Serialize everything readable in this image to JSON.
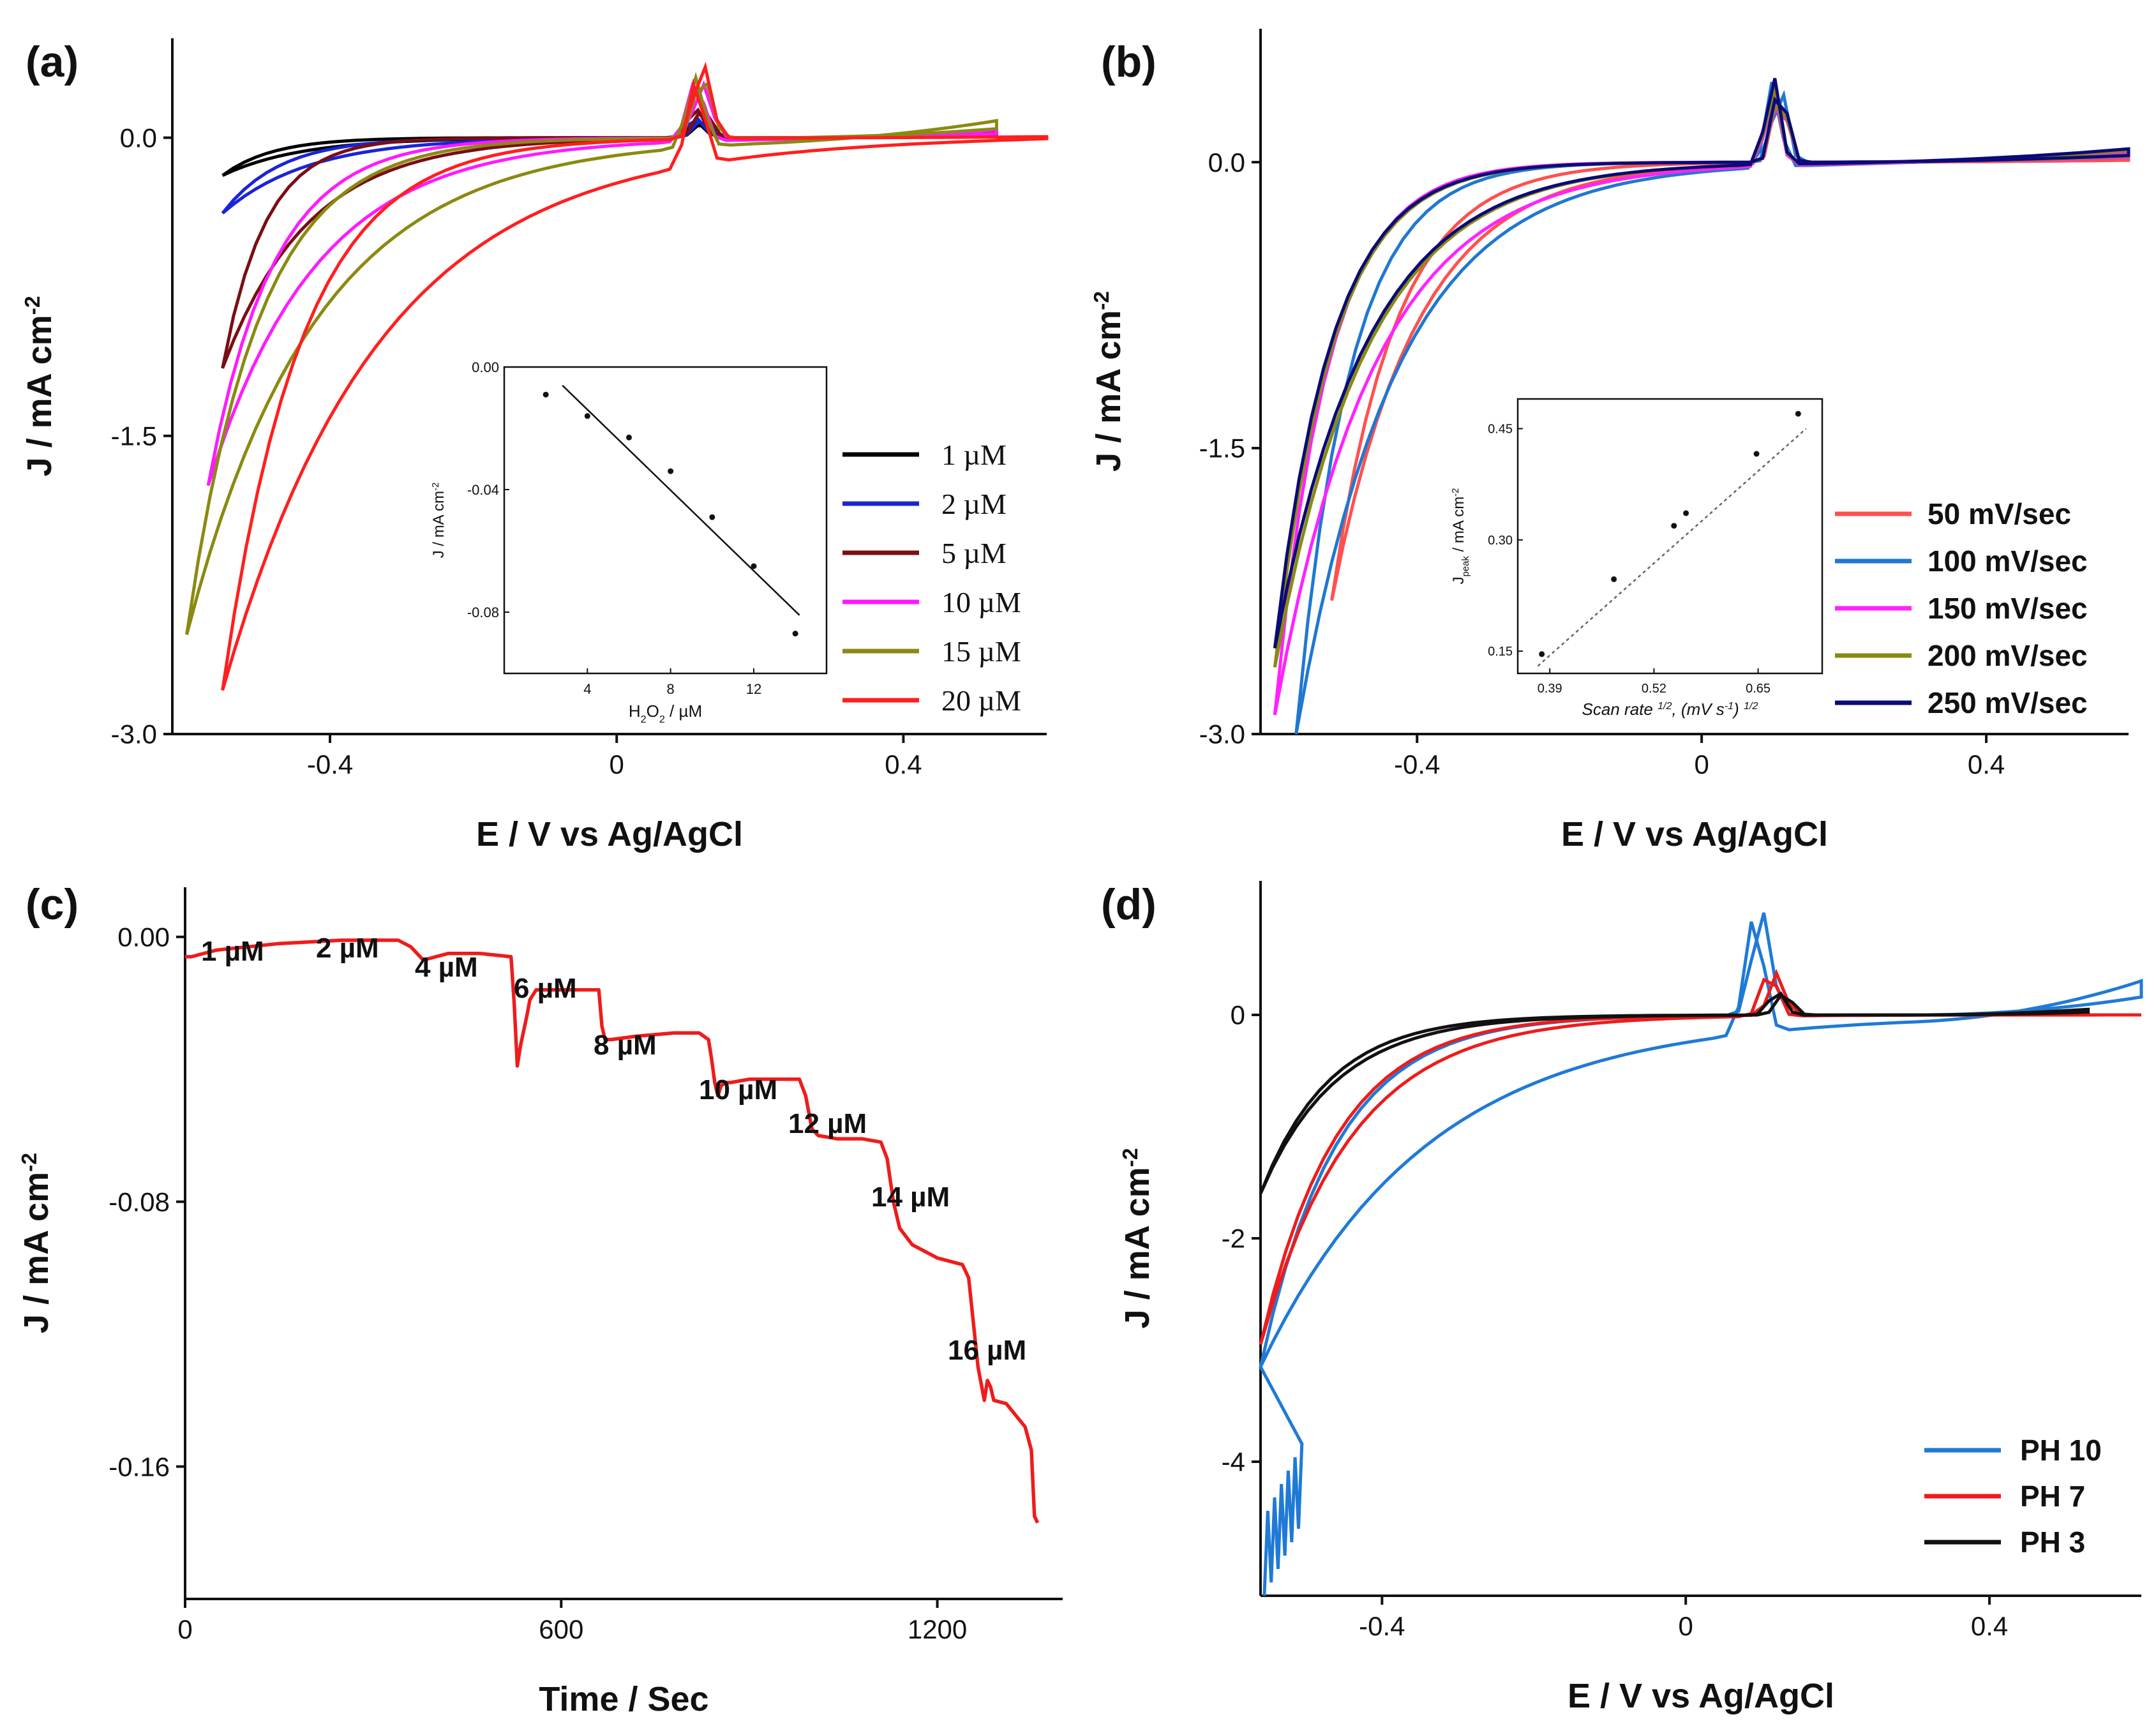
{
  "figure": {
    "panels": [
      {
        "id": "a",
        "label": "(a)",
        "inset": {
          "chart_data": {
            "type": "scatter",
            "xlabel": "H2O2 / µM",
            "ylabel": "J / mA cm-2",
            "xlim": [
              0,
              15.5
            ],
            "ylim": [
              -0.1,
              0.0
            ],
            "xticks": [
              4,
              8,
              12
            ],
            "yticks": [
              0.0,
              -0.04,
              -0.08
            ],
            "ytick_labels": [
              "0.00",
              "-0.04",
              "-0.08"
            ],
            "x": [
              2,
              4,
              6,
              8,
              10,
              12,
              14
            ],
            "y": [
              -0.009,
              -0.016,
              -0.023,
              -0.034,
              -0.049,
              -0.065,
              -0.087
            ],
            "fit_line": {
              "x": [
                2.8,
                14.2
              ],
              "y": [
                -0.006,
                -0.081
              ]
            }
          }
        }
      },
      {
        "id": "b",
        "label": "(b)",
        "inset": {
          "chart_data": {
            "type": "scatter",
            "xlabel": "Scan rate 1/2, (mV s-1) 1/2",
            "ylabel": "Jpeak / mA cm-2",
            "xlim": [
              0.35,
              0.73
            ],
            "ylim": [
              0.12,
              0.49
            ],
            "xticks": [
              0.39,
              0.52,
              0.65
            ],
            "xtick_labels": [
              "0.39",
              "0.52",
              "0.65"
            ],
            "yticks": [
              0.15,
              0.3,
              0.45
            ],
            "ytick_labels": [
              "0.15",
              "0.30",
              "0.45"
            ],
            "x": [
              0.38,
              0.47,
              0.545,
              0.56,
              0.648,
              0.7
            ],
            "y": [
              0.146,
              0.247,
              0.319,
              0.336,
              0.416,
              0.47
            ],
            "fit_line": {
              "x": [
                0.375,
                0.71
              ],
              "y": [
                0.13,
                0.45
              ]
            }
          }
        }
      },
      {
        "id": "c",
        "label": "(c)",
        "concentration_labels": [
          "1 µM",
          "2 µM",
          "4 µM",
          "6 µM",
          "8 µM",
          "10 µM",
          "12 µM",
          "14 µM",
          "16 µM"
        ]
      },
      {
        "id": "d",
        "label": "(d)"
      }
    ]
  },
  "chart_data": [
    {
      "panel": "a",
      "type": "line",
      "xlabel": "E / V vs Ag/AgCl",
      "ylabel": "J / mA cm-2",
      "xlim": [
        -0.62,
        0.6
      ],
      "ylim": [
        -3.0,
        0.5
      ],
      "xticks": [
        -0.4,
        0.0,
        0.4
      ],
      "yticks": [
        0.0,
        -1.5,
        -3.0
      ],
      "ytick_labels": [
        "0.0",
        "-1.5",
        "-3.0"
      ],
      "legend_position": "right",
      "series": [
        {
          "name": "1  µM",
          "color": "#000000",
          "xmin": -0.55,
          "ymin": -0.19,
          "peak": 0.08,
          "tail": 0.02
        },
        {
          "name": "2  µM",
          "color": "#1a24d6",
          "xmin": -0.55,
          "ymin": -0.38,
          "peak": 0.1,
          "tail": 0.02
        },
        {
          "name": "5  µM",
          "color": "#7a0e12",
          "xmin": -0.55,
          "ymin": -1.16,
          "peak": 0.15,
          "tail": 0.03
        },
        {
          "name": "10 µM",
          "color": "#ff1aff",
          "xmin": -0.57,
          "ymin": -1.75,
          "peak": 0.3,
          "tail": 0.04
        },
        {
          "name": "15 µM",
          "color": "#8a8a12",
          "xmin": -0.6,
          "ymin": -2.5,
          "peak": 0.35,
          "tail": 0.09
        },
        {
          "name": "20 µM",
          "color": "#ff1f1f",
          "xmin": -0.55,
          "ymin": -2.78,
          "peak": 0.42,
          "tail": 0.01
        }
      ]
    },
    {
      "panel": "b",
      "type": "line",
      "xlabel": "E / V vs Ag/AgCl",
      "ylabel": "J / mA cm-2",
      "xlim": [
        -0.62,
        0.6
      ],
      "ylim": [
        -3.0,
        0.7
      ],
      "xticks": [
        -0.4,
        0.0,
        0.4
      ],
      "yticks": [
        0.0,
        -1.5,
        -3.0
      ],
      "ytick_labels": [
        "0.0",
        "-1.5",
        "-3.0"
      ],
      "legend_position": "right",
      "series": [
        {
          "name": "50  mV/sec",
          "color": "#ff5050",
          "ymin": -2.3,
          "peak": 0.42,
          "tail": 0.02
        },
        {
          "name": "100 mV/sec",
          "color": "#1f78d1",
          "ymin": -3.0,
          "peak": 0.45,
          "tail": 0.05
        },
        {
          "name": "150 mV/sec",
          "color": "#ff22ff",
          "ymin": -2.9,
          "peak": 0.4,
          "tail": 0.05
        },
        {
          "name": "200 mV/sec",
          "color": "#8a8a12",
          "ymin": -2.65,
          "peak": 0.42,
          "tail": 0.06
        },
        {
          "name": "250 mV/sec",
          "color": "#0a0a78",
          "ymin": -2.55,
          "peak": 0.47,
          "tail": 0.07
        }
      ]
    },
    {
      "panel": "c",
      "type": "line",
      "xlabel": "Time / Sec",
      "ylabel": "J / mA cm-2",
      "xlim": [
        0,
        1400
      ],
      "ylim": [
        -0.2,
        0.015
      ],
      "xticks": [
        0,
        600,
        1200
      ],
      "yticks": [
        0.0,
        -0.08,
        -0.16
      ],
      "ytick_labels": [
        "0.00",
        "-0.08",
        "-0.16"
      ],
      "series": [
        {
          "name": "",
          "color": "#ee1c1c",
          "x": [
            0,
            10,
            50,
            150,
            250,
            340,
            360,
            380,
            400,
            420,
            470,
            520,
            525,
            530,
            535,
            545,
            550,
            560,
            575,
            590,
            620,
            660,
            665,
            670,
            680,
            720,
            780,
            820,
            835,
            840,
            845,
            850,
            855,
            862,
            870,
            900,
            950,
            980,
            990,
            1000,
            1010,
            1040,
            1080,
            1110,
            1120,
            1130,
            1140,
            1160,
            1200,
            1240,
            1250,
            1260,
            1265,
            1275,
            1280,
            1285,
            1290,
            1310,
            1340,
            1350,
            1355,
            1360
          ],
          "y": [
            -0.006,
            -0.006,
            -0.004,
            -0.002,
            -0.001,
            -0.001,
            -0.003,
            -0.007,
            -0.006,
            -0.005,
            -0.005,
            -0.006,
            -0.02,
            -0.039,
            -0.033,
            -0.024,
            -0.019,
            -0.016,
            -0.016,
            -0.016,
            -0.016,
            -0.016,
            -0.027,
            -0.031,
            -0.031,
            -0.03,
            -0.029,
            -0.029,
            -0.031,
            -0.037,
            -0.044,
            -0.048,
            -0.045,
            -0.044,
            -0.044,
            -0.043,
            -0.043,
            -0.043,
            -0.048,
            -0.058,
            -0.06,
            -0.061,
            -0.061,
            -0.062,
            -0.067,
            -0.08,
            -0.088,
            -0.093,
            -0.097,
            -0.099,
            -0.103,
            -0.121,
            -0.13,
            -0.14,
            -0.134,
            -0.136,
            -0.14,
            -0.141,
            -0.148,
            -0.155,
            -0.175,
            -0.177
          ]
        }
      ]
    },
    {
      "panel": "d",
      "type": "line",
      "xlabel": "E / V vs Ag/AgCl",
      "ylabel": "J / mA cm-2",
      "xlim": [
        -0.56,
        0.6
      ],
      "ylim": [
        -5.2,
        1.2
      ],
      "xticks": [
        -0.4,
        0.0,
        0.4
      ],
      "yticks": [
        0,
        -2,
        -4
      ],
      "ytick_labels": [
        "0",
        "-2",
        "-4"
      ],
      "legend_position": "bottom-right",
      "series": [
        {
          "name": "PH 10",
          "color": "#1f7ad6",
          "ymin": -3.15,
          "peak": 1.05,
          "tail": 0.32
        },
        {
          "name": "PH 7",
          "color": "#ee1c1c",
          "ymin": -2.95,
          "peak": 0.42,
          "tail": 0.0
        },
        {
          "name": "PH 3",
          "color": "#111111",
          "ymin": -1.6,
          "peak": 0.22,
          "tail": 0.05
        }
      ]
    }
  ]
}
